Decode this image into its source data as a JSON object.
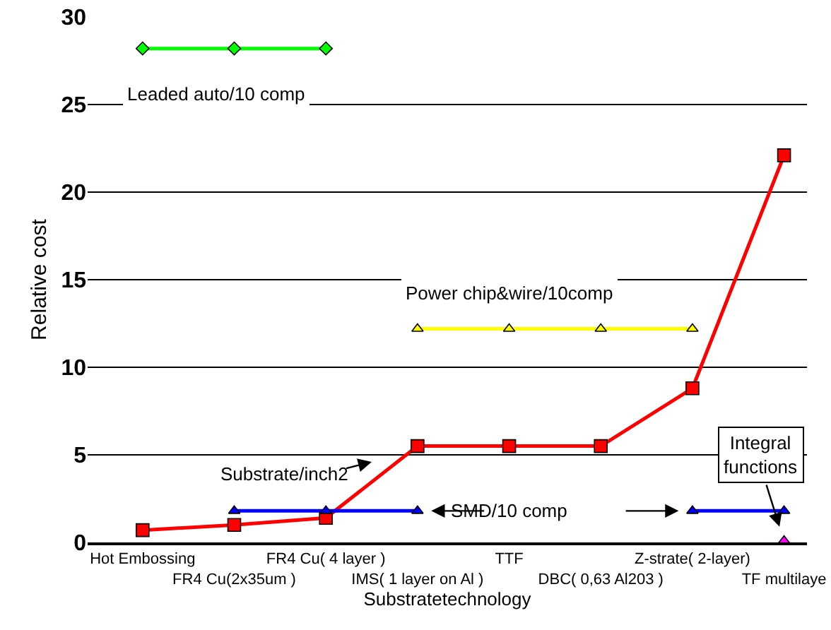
{
  "chart_data": {
    "type": "line",
    "xlabel": "Substratetechnology",
    "ylabel": "Relative cost",
    "categories": [
      "Hot Embossing",
      "FR4 Cu(2x35um )",
      "FR4 Cu( 4 layer )",
      "IMS( 1 layer on Al )",
      "TTF",
      "DBC( 0,63 Al203 )",
      "Z-strate( 2-layer)",
      "TF multilaye"
    ],
    "series": [
      {
        "name": "Substrate/inch2",
        "color": "#ff0000",
        "marker": "square",
        "values": [
          0.7,
          1.0,
          1.4,
          5.5,
          5.5,
          5.5,
          8.8,
          22.1
        ]
      },
      {
        "name": "SMD/10 comp",
        "color": "#0000ff",
        "marker": "triangle",
        "values": [
          null,
          1.8,
          1.8,
          1.8,
          null,
          null,
          1.8,
          1.8
        ]
      },
      {
        "name": "Power chip&wire/10comp",
        "color": "#ffff00",
        "marker": "triangle",
        "values": [
          null,
          null,
          null,
          12.2,
          12.2,
          12.2,
          12.2,
          null
        ]
      },
      {
        "name": "Leaded auto/10 comp",
        "color": "#00ff00",
        "marker": "diamond",
        "values": [
          28.2,
          28.2,
          28.2,
          null,
          null,
          null,
          null,
          null
        ]
      },
      {
        "name": "Integral functions",
        "color": "#ff00ff",
        "marker": "triangle",
        "values": [
          null,
          null,
          null,
          null,
          null,
          null,
          null,
          0.1
        ]
      }
    ],
    "ylim": [
      0,
      30
    ],
    "yticks": [
      0,
      5,
      10,
      15,
      20,
      25,
      30
    ],
    "grid": "y",
    "legend": false
  }
}
